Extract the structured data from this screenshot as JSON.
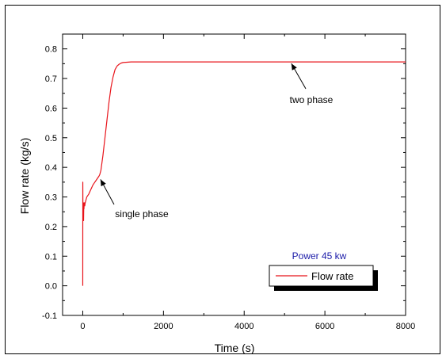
{
  "chart_data": {
    "type": "line",
    "xlabel": "Time (s)",
    "ylabel": "Flow rate (kg/s)",
    "xlim": [
      -500,
      8000
    ],
    "ylim": [
      -0.1,
      0.85
    ],
    "xticks": [
      "0",
      "2000",
      "4000",
      "6000",
      "8000"
    ],
    "yticks": [
      "-0.1",
      "0.0",
      "0.1",
      "0.2",
      "0.3",
      "0.4",
      "0.5",
      "0.6",
      "0.7",
      "0.8"
    ],
    "grid": false,
    "legend_position": "bottom-right",
    "series": [
      {
        "name": "Flow rate",
        "color": "#e8141b",
        "x": [
          0,
          1,
          5,
          10,
          15,
          20,
          25,
          30,
          35,
          40,
          45,
          50,
          60,
          80,
          100,
          150,
          200,
          250,
          300,
          350,
          400,
          420,
          450,
          500,
          550,
          600,
          650,
          700,
          750,
          800,
          850,
          900,
          950,
          1000,
          1100,
          1200,
          1400,
          1600,
          2000,
          3000,
          4000,
          5000,
          6000,
          7000,
          8000
        ],
        "values": [
          0.0,
          0.35,
          0.22,
          0.25,
          0.28,
          0.22,
          0.27,
          0.26,
          0.28,
          0.27,
          0.28,
          0.27,
          0.28,
          0.29,
          0.3,
          0.31,
          0.325,
          0.34,
          0.35,
          0.36,
          0.37,
          0.375,
          0.39,
          0.44,
          0.5,
          0.56,
          0.62,
          0.67,
          0.705,
          0.73,
          0.742,
          0.748,
          0.752,
          0.754,
          0.755,
          0.756,
          0.756,
          0.756,
          0.756,
          0.756,
          0.756,
          0.756,
          0.756,
          0.756,
          0.756
        ]
      }
    ],
    "annotations": [
      {
        "text": "two phase",
        "arrow_to": [
          5150,
          0.756
        ]
      },
      {
        "text": "single phase",
        "arrow_to": [
          420,
          0.37
        ]
      }
    ],
    "power_label": "Power 45 kw",
    "power_color": "#1a1aa8"
  }
}
